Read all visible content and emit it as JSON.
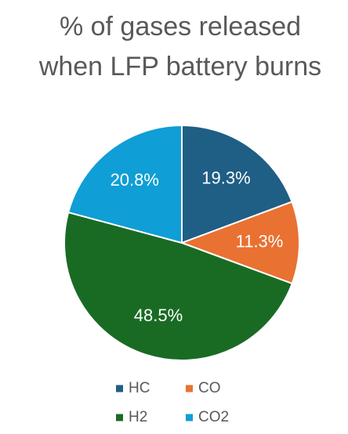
{
  "chart_data": {
    "type": "pie",
    "title": [
      "% of gases released",
      "when LFP battery burns"
    ],
    "categories": [
      "HC",
      "CO",
      "H2",
      "CO2"
    ],
    "values": [
      19.3,
      11.3,
      48.5,
      20.8
    ],
    "value_labels": [
      "19.3%",
      "11.3%",
      "48.5%",
      "20.8%"
    ],
    "colors": [
      "#1f5e85",
      "#e97132",
      "#196b24",
      "#0f9ed5"
    ],
    "legend": "bottom"
  }
}
